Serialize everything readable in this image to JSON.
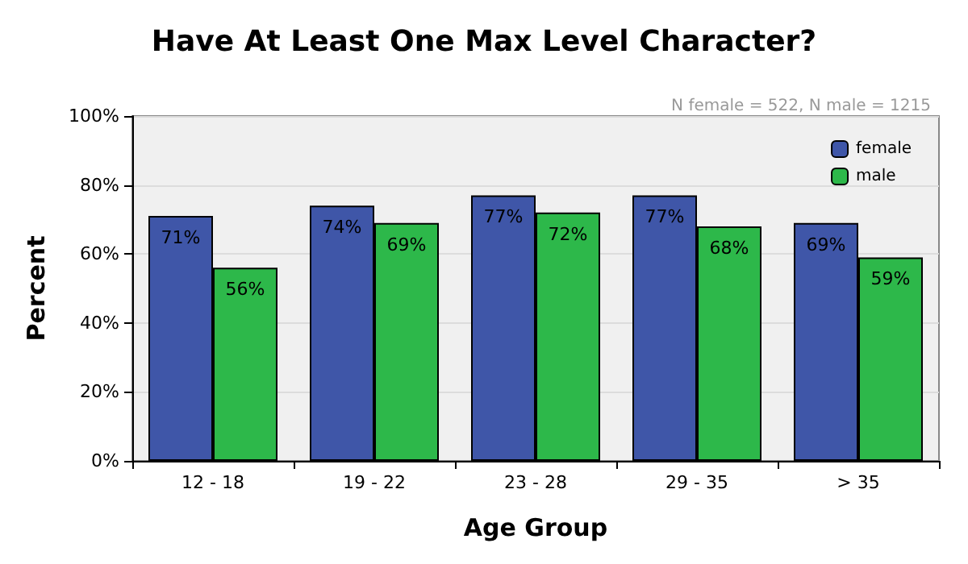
{
  "chart_data": {
    "type": "bar",
    "title": "Have At Least One Max Level Character?",
    "xlabel": "Age Group",
    "ylabel": "Percent",
    "annotations": [
      "N female = 522, N male = 1215"
    ],
    "categories": [
      "12 - 18",
      "19 - 22",
      "23 - 28",
      "29 - 35",
      "> 35"
    ],
    "series": [
      {
        "name": "female",
        "color": "#3f56a8",
        "values": [
          71,
          74,
          77,
          77,
          69
        ],
        "value_labels": [
          "71%",
          "74%",
          "77%",
          "77%",
          "69%"
        ]
      },
      {
        "name": "male",
        "color": "#2db84a",
        "values": [
          56,
          69,
          72,
          68,
          59
        ],
        "value_labels": [
          "56%",
          "69%",
          "72%",
          "68%",
          "59%"
        ]
      }
    ],
    "ylim": [
      0,
      100
    ],
    "yticks": [
      {
        "value": 0,
        "label": "0%"
      },
      {
        "value": 20,
        "label": "20%"
      },
      {
        "value": 40,
        "label": "40%"
      },
      {
        "value": 60,
        "label": "60%"
      },
      {
        "value": 80,
        "label": "80%"
      },
      {
        "value": 100,
        "label": "100%"
      }
    ],
    "grid": "y",
    "legend": "top right"
  }
}
